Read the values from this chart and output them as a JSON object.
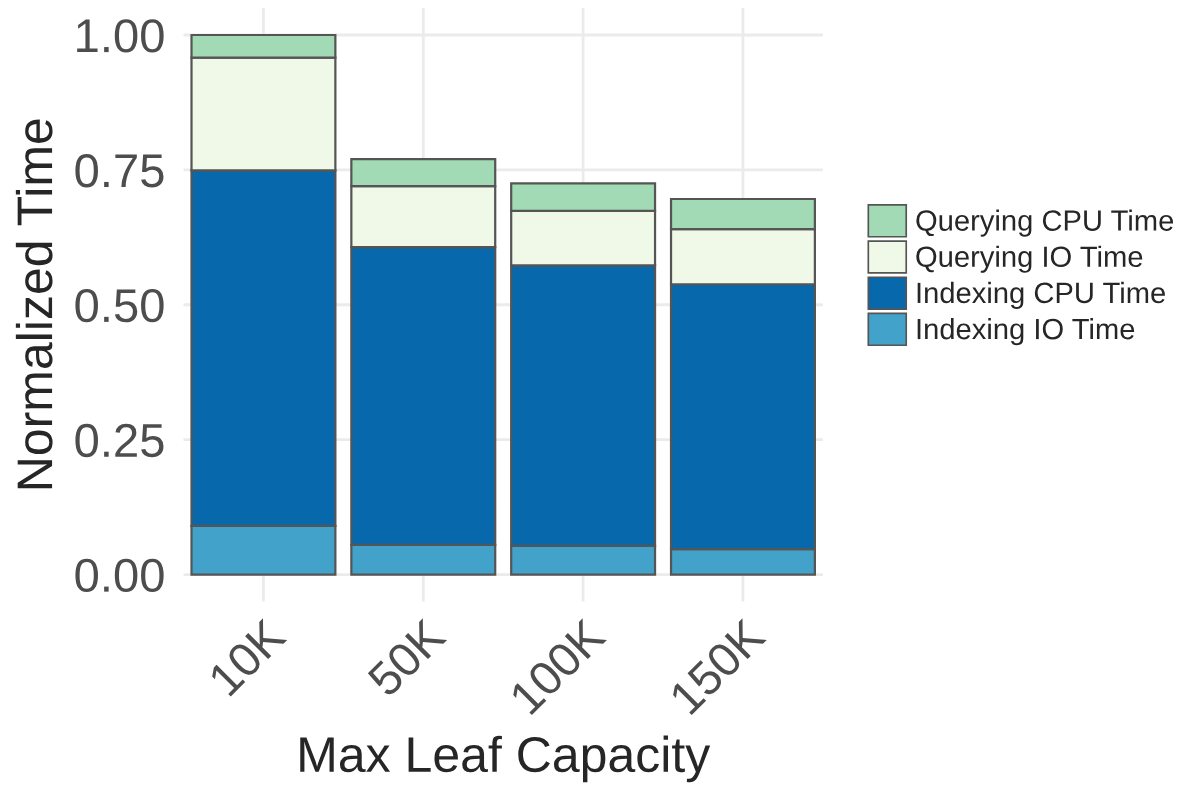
{
  "chart_data": {
    "type": "bar",
    "xlabel": "Max Leaf Capacity",
    "ylabel": "Normalized Time",
    "categories": [
      "10K",
      "50K",
      "100K",
      "150K"
    ],
    "stacked": true,
    "series": [
      {
        "name": "Indexing IO Time",
        "color": "#43a2ca",
        "values": [
          0.09,
          0.055,
          0.053,
          0.047
        ]
      },
      {
        "name": "Indexing CPU Time",
        "color": "#0868ac",
        "values": [
          0.659,
          0.552,
          0.52,
          0.491
        ]
      },
      {
        "name": "Querying IO Time",
        "color": "#f0f9e8",
        "values": [
          0.209,
          0.113,
          0.101,
          0.102
        ]
      },
      {
        "name": "Querying CPU Time",
        "color": "#a1dab4",
        "values": [
          0.042,
          0.05,
          0.051,
          0.056
        ]
      }
    ],
    "ylim": [
      -0.05,
      1.05
    ],
    "yticks": [
      {
        "value": 0,
        "label": "0.00"
      },
      {
        "value": 0.25,
        "label": "0.25"
      },
      {
        "value": 0.5,
        "label": "0.50"
      },
      {
        "value": 0.75,
        "label": "0.75"
      },
      {
        "value": 1,
        "label": "1.00"
      }
    ],
    "grid": true,
    "legend": "right"
  }
}
